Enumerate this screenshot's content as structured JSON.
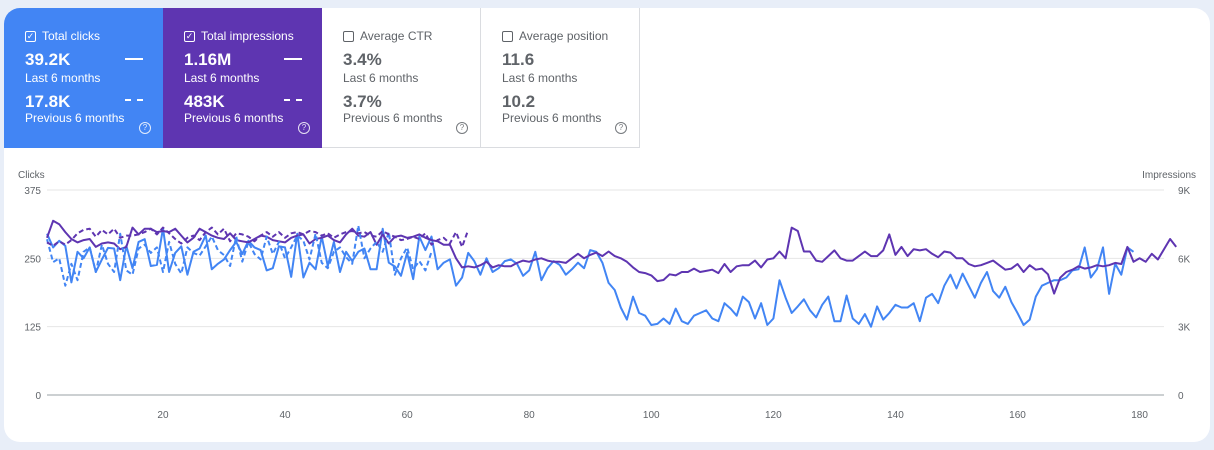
{
  "metrics": [
    {
      "label": "Total clicks",
      "checked": true,
      "bg": "#4285f4",
      "current_value": "39.2K",
      "current_period": "Last 6 months",
      "previous_value": "17.8K",
      "previous_period": "Previous 6 months"
    },
    {
      "label": "Total impressions",
      "checked": true,
      "bg": "#5e35b1",
      "current_value": "1.16M",
      "current_period": "Last 6 months",
      "previous_value": "483K",
      "previous_period": "Previous 6 months"
    },
    {
      "label": "Average CTR",
      "checked": false,
      "bg": "#ffffff",
      "current_value": "3.4%",
      "current_period": "Last 6 months",
      "previous_value": "3.7%",
      "previous_period": "Previous 6 months"
    },
    {
      "label": "Average position",
      "checked": false,
      "bg": "#ffffff",
      "current_value": "11.6",
      "current_period": "Last 6 months",
      "previous_value": "10.2",
      "previous_period": "Previous 6 months"
    }
  ],
  "chart_data": {
    "type": "line",
    "ylabel_left": "Clicks",
    "ylabel_right": "Impressions",
    "y_ticks_left": [
      "0",
      "125",
      "250",
      "375"
    ],
    "y_ticks_right": [
      "0",
      "3K",
      "6K",
      "9K"
    ],
    "ylim_left": [
      0,
      375
    ],
    "ylim_right": [
      0,
      9000
    ],
    "x_ticks": [
      "20",
      "40",
      "60",
      "80",
      "100",
      "120",
      "140",
      "160",
      "180"
    ],
    "xlim": [
      1,
      184
    ],
    "grid": true,
    "series": [
      {
        "metric": "clicks",
        "period": "current",
        "color": "#4285f4",
        "dashed": false,
        "axis": "left",
        "values": [
          295,
          270,
          282,
          273,
          206,
          262,
          250,
          270,
          225,
          248,
          269,
          268,
          210,
          273,
          232,
          280,
          285,
          236,
          238,
          305,
          225,
          260,
          272,
          220,
          262,
          268,
          292,
          230,
          240,
          248,
          265,
          280,
          258,
          282,
          270,
          265,
          228,
          232,
          272,
          270,
          216,
          295,
          215,
          242,
          230,
          290,
          236,
          280,
          225,
          262,
          245,
          262,
          268,
          230,
          230,
          304,
          242,
          235,
          218,
          260,
          212,
          290,
          265,
          290,
          230,
          242,
          248,
          200,
          215,
          260,
          245,
          220,
          250,
          225,
          232,
          245,
          248,
          240,
          218,
          228,
          262,
          210,
          232,
          245,
          238,
          220,
          230,
          242,
          232,
          265,
          262,
          242,
          205,
          192,
          160,
          138,
          180,
          150,
          145,
          128,
          130,
          140,
          130,
          158,
          135,
          130,
          145,
          150,
          155,
          140,
          135,
          168,
          158,
          145,
          180,
          170,
          140,
          168,
          128,
          140,
          210,
          178,
          150,
          162,
          175,
          155,
          142,
          165,
          180,
          135,
          135,
          182,
          140,
          130,
          148,
          125,
          162,
          138,
          150,
          165,
          160,
          160,
          168,
          135,
          178,
          185,
          168,
          200,
          220,
          195,
          222,
          200,
          178,
          205,
          225,
          190,
          178,
          198,
          170,
          150,
          128,
          138,
          180,
          200,
          205,
          210,
          210,
          215,
          228,
          230,
          270,
          215,
          230,
          270,
          185,
          240,
          220,
          270,
          262
        ],
        "visible_from": 1
      },
      {
        "metric": "impressions",
        "period": "current",
        "color": "#5e35b1",
        "dashed": false,
        "axis": "right",
        "values": [
          6900,
          7650,
          7500,
          7150,
          6850,
          6700,
          6800,
          6850,
          6500,
          6650,
          6700,
          6650,
          6400,
          6500,
          7350,
          7050,
          7300,
          7300,
          7150,
          7200,
          7150,
          7300,
          7000,
          6700,
          6900,
          7300,
          7150,
          7000,
          6900,
          6850,
          7100,
          6800,
          6750,
          6700,
          6850,
          7000,
          6950,
          6800,
          6750,
          6700,
          6900,
          7000,
          7050,
          6650,
          6850,
          6900,
          7000,
          6800,
          6700,
          7050,
          7300,
          7000,
          6950,
          7150,
          6600,
          7050,
          6650,
          6950,
          7000,
          6900,
          6950,
          7050,
          6900,
          6800,
          6750,
          6600,
          6600,
          6000,
          5600,
          5650,
          5600,
          5700,
          5850,
          5600,
          5700,
          5650,
          5650,
          5800,
          5900,
          5850,
          5950,
          6000,
          5900,
          5850,
          5850,
          5800,
          6000,
          6200,
          6000,
          6150,
          6250,
          6100,
          6300,
          6100,
          6000,
          5850,
          5600,
          5400,
          5350,
          5250,
          5000,
          5050,
          5300,
          5250,
          5400,
          5400,
          5550,
          5400,
          5450,
          5500,
          5350,
          5750,
          5400,
          5650,
          5700,
          5700,
          5900,
          5600,
          5950,
          6000,
          6300,
          6000,
          7350,
          7200,
          6300,
          6300,
          5900,
          5850,
          6100,
          6350,
          6000,
          5900,
          5900,
          6100,
          6300,
          6100,
          6100,
          6350,
          7050,
          6150,
          6500,
          6100,
          6400,
          6350,
          6400,
          6200,
          6050,
          6300,
          6250,
          6000,
          6000,
          5750,
          5650,
          5700,
          5800,
          5900,
          5700,
          5500,
          5550,
          5750,
          5400,
          5700,
          5500,
          5550,
          5300,
          4450,
          5150,
          5400,
          5500,
          5650,
          5550,
          5600,
          5700,
          5650,
          5700,
          5800,
          5750,
          6500,
          5850,
          6000,
          5850,
          6200,
          5950,
          6400,
          6850,
          6500
        ],
        "visible_from": 1
      },
      {
        "metric": "clicks",
        "period": "previous",
        "color": "#4285f4",
        "dashed": true,
        "axis": "left",
        "values": [
          285,
          243,
          250,
          200,
          240,
          210,
          262,
          270,
          225,
          275,
          240,
          225,
          295,
          228,
          220,
          268,
          275,
          260,
          270,
          225,
          280,
          240,
          222,
          270,
          260,
          255,
          272,
          290,
          265,
          256,
          236,
          290,
          244,
          280,
          258,
          248,
          290,
          258,
          280,
          250,
          270,
          292,
          282,
          248,
          295,
          242,
          232,
          262,
          270,
          252,
          240,
          310,
          250,
          268,
          280,
          262,
          298,
          220,
          250,
          270,
          230,
          245,
          228,
          262
        ],
        "visible_from": 1
      },
      {
        "metric": "impressions",
        "period": "previous",
        "color": "#5e35b1",
        "dashed": true,
        "axis": "right",
        "values": [
          6700,
          6550,
          6750,
          6600,
          6800,
          7100,
          7250,
          7300,
          6950,
          7250,
          7050,
          7300,
          6900,
          7000,
          7000,
          7050,
          7150,
          7300,
          7050,
          7350,
          7100,
          6850,
          6650,
          6900,
          7000,
          6800,
          7150,
          7350,
          7050,
          7300,
          6750,
          7100,
          7050,
          6950,
          6750,
          7000,
          7150,
          6950,
          7150,
          6900,
          7100,
          7150,
          7050,
          7200,
          7150,
          7000,
          7100,
          6900,
          7050,
          7150,
          7200,
          7100,
          7150,
          7000,
          6950,
          7200,
          7050,
          6950,
          6800,
          6850,
          6950,
          6850,
          7100,
          6600,
          6800,
          6900,
          6650,
          7150,
          6500,
          7250
        ],
        "visible_from": 1
      }
    ]
  }
}
